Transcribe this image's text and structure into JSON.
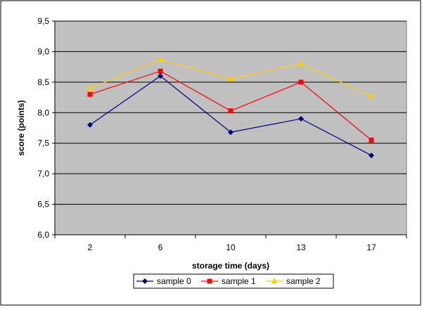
{
  "chart_data": {
    "type": "line",
    "title": "",
    "xlabel": "storage time (days)",
    "ylabel": "score (points)",
    "categories": [
      "2",
      "6",
      "10",
      "13",
      "17"
    ],
    "ylim": [
      6.0,
      9.5
    ],
    "yticks": [
      "6,0",
      "6,5",
      "7,0",
      "7,5",
      "8,0",
      "8,5",
      "9,0",
      "9,5"
    ],
    "ytick_values": [
      6.0,
      6.5,
      7.0,
      7.5,
      8.0,
      8.5,
      9.0,
      9.5
    ],
    "grid": true,
    "legend_position": "bottom",
    "series": [
      {
        "name": "sample 0",
        "color": "#000080",
        "marker": "diamond",
        "values": [
          7.8,
          8.6,
          7.68,
          7.9,
          7.3
        ]
      },
      {
        "name": "sample 1",
        "color": "#ff0000",
        "marker": "square",
        "values": [
          8.3,
          8.68,
          8.03,
          8.5,
          7.55
        ]
      },
      {
        "name": "sample 2",
        "color": "#ffcc00",
        "marker": "triangle",
        "values": [
          8.4,
          8.87,
          8.55,
          8.8,
          8.27
        ]
      }
    ],
    "plot_background": "#c0c0c0",
    "grid_color": "#000000"
  }
}
